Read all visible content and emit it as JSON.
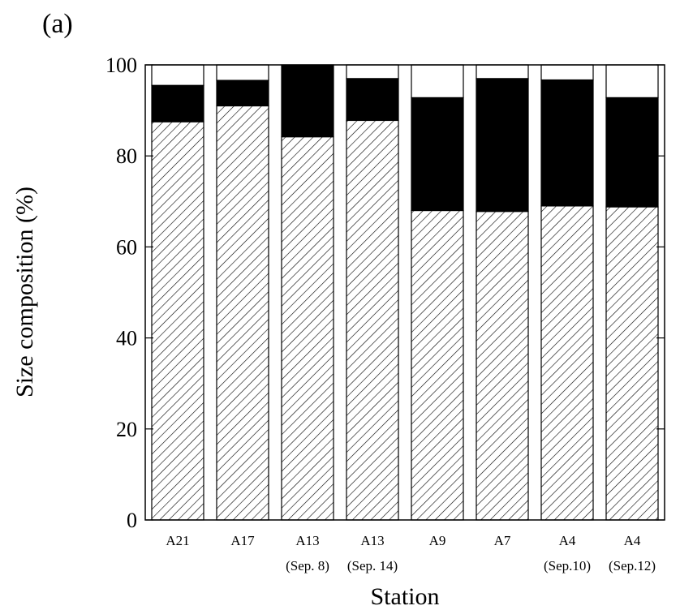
{
  "panel_label": "(a)",
  "chart_data": {
    "type": "bar",
    "stacked": true,
    "categories": [
      "A21",
      "A17",
      "A13",
      "A13",
      "A9",
      "A7",
      "A4",
      "A4"
    ],
    "category_sublabels": [
      "",
      "",
      "(Sep. 8)",
      "(Sep. 14)",
      "",
      "",
      "(Sep.10)",
      "(Sep.12)"
    ],
    "series": [
      {
        "pattern": "hatched",
        "values": [
          87.5,
          91.0,
          84.2,
          87.8,
          68.0,
          67.8,
          69.0,
          68.8
        ]
      },
      {
        "pattern": "solid-black",
        "values": [
          8.0,
          5.6,
          15.8,
          9.2,
          24.8,
          29.2,
          27.7,
          24.0
        ]
      },
      {
        "pattern": "white",
        "values": [
          4.5,
          3.4,
          0.0,
          3.0,
          7.2,
          3.0,
          3.3,
          7.2
        ]
      }
    ],
    "xlabel": "Station",
    "ylabel": "Size composition (%)",
    "ylim": [
      0,
      100
    ],
    "yticks": [
      0,
      20,
      40,
      60,
      80,
      100
    ],
    "grid": false,
    "colors": {
      "hatched": "#ffffff",
      "solid-black": "#000000",
      "white": "#ffffff",
      "axis": "#000000"
    }
  }
}
